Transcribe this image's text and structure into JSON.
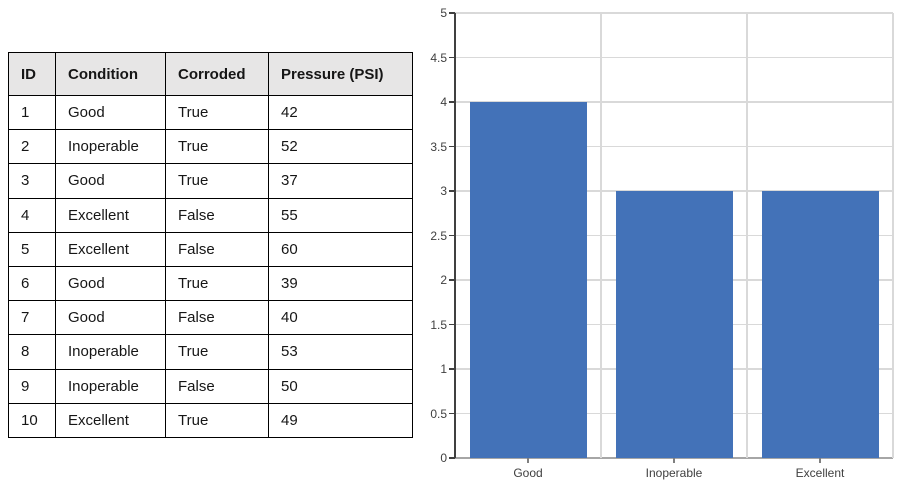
{
  "table": {
    "columns": [
      "ID",
      "Condition",
      "Corroded",
      "Pressure (PSI)"
    ],
    "rows": [
      [
        "1",
        "Good",
        "True",
        "42"
      ],
      [
        "2",
        "Inoperable",
        "True",
        "52"
      ],
      [
        "3",
        "Good",
        "True",
        "37"
      ],
      [
        "4",
        "Excellent",
        "False",
        "55"
      ],
      [
        "5",
        "Excellent",
        "False",
        "60"
      ],
      [
        "6",
        "Good",
        "True",
        "39"
      ],
      [
        "7",
        "Good",
        "False",
        "40"
      ],
      [
        "8",
        "Inoperable",
        "True",
        "53"
      ],
      [
        "9",
        "Inoperable",
        "False",
        "50"
      ],
      [
        "10",
        "Excellent",
        "True",
        "49"
      ]
    ],
    "header_bg": "#e7e6e6",
    "border_color": "#000000"
  },
  "chart_data": {
    "type": "bar",
    "categories": [
      "Good",
      "Inoperable",
      "Excellent"
    ],
    "values": [
      4,
      3,
      3
    ],
    "title": "",
    "xlabel": "",
    "ylabel": "",
    "ylim": [
      0,
      5
    ],
    "ytick_step": 0.5,
    "ytick_labels": [
      "0",
      "0.5",
      "1",
      "1.5",
      "2",
      "2.5",
      "3",
      "3.5",
      "4",
      "4.5",
      "5"
    ],
    "bar_color": "#4372b8",
    "gridline_color": "#d9d9d9",
    "baseline_color": "#a6a6a6",
    "axis_color": "#404040",
    "tick_color": "#808080",
    "label_color": "#404040",
    "grid": true,
    "legend": false
  }
}
